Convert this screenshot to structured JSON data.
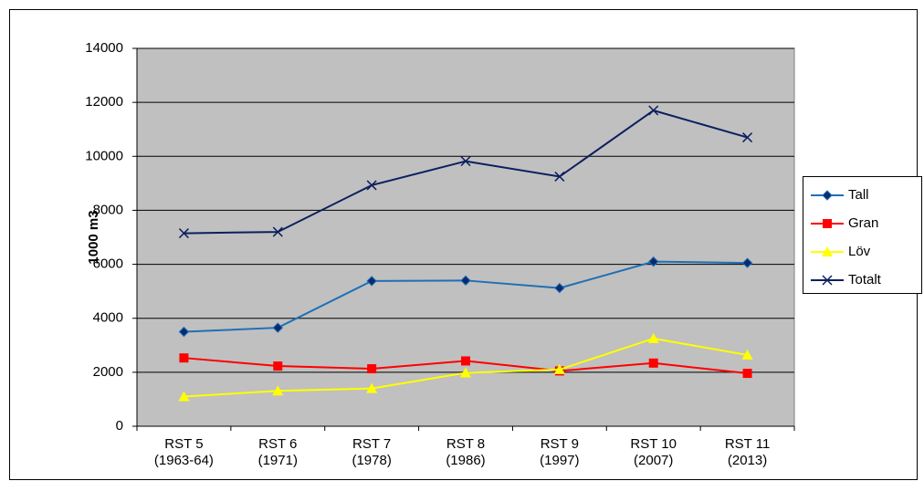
{
  "chart_data": {
    "type": "line",
    "y_label": "1000 m3",
    "categories": [
      "RST 5\n(1963-64)",
      "RST 6\n(1971)",
      "RST 7\n(1978)",
      "RST 8\n(1986)",
      "RST 9\n(1997)",
      "RST 10\n(2007)",
      "RST 11\n(2013)"
    ],
    "series": [
      {
        "name": "Tall",
        "color": "#1f6fb5",
        "marker": "diamond",
        "marker_color": "#0c2a6e",
        "values": [
          3500,
          3650,
          5380,
          5400,
          5120,
          6100,
          6050
        ]
      },
      {
        "name": "Gran",
        "color": "#ff0000",
        "marker": "square",
        "marker_color": "#ff0000",
        "values": [
          2530,
          2230,
          2130,
          2420,
          2050,
          2340,
          1960
        ]
      },
      {
        "name": "Löv",
        "color": "#ffff00",
        "marker": "triangle",
        "marker_color": "#ffff00",
        "values": [
          1100,
          1310,
          1400,
          1980,
          2100,
          3250,
          2640
        ]
      },
      {
        "name": "Totalt",
        "color": "#0c1f5e",
        "marker": "x",
        "marker_color": "#0c1f5e",
        "values": [
          7150,
          7200,
          8930,
          9820,
          9250,
          11700,
          10700
        ]
      }
    ],
    "ylim": [
      0,
      14000
    ],
    "yticks": [
      0,
      2000,
      4000,
      6000,
      8000,
      10000,
      12000,
      14000
    ],
    "grid": true,
    "legend": "right",
    "plot_background": "#c0c0c0"
  }
}
